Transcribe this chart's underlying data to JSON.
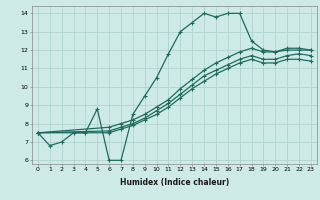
{
  "xlabel": "Humidex (Indice chaleur)",
  "xlim": [
    -0.5,
    23.5
  ],
  "ylim": [
    5.8,
    14.4
  ],
  "bg_color": "#ceeae7",
  "grid_color": "#afd4cf",
  "line_color": "#1e6b5e",
  "lines": [
    {
      "x": [
        0,
        1,
        2,
        3,
        4,
        5,
        6,
        7,
        8,
        9,
        10,
        11,
        12,
        13,
        14,
        15,
        16,
        17,
        18,
        19,
        20,
        21,
        22,
        23
      ],
      "y": [
        7.5,
        6.8,
        7.0,
        7.5,
        7.5,
        8.8,
        6.0,
        6.0,
        8.5,
        9.5,
        10.5,
        11.8,
        13.0,
        13.5,
        14.0,
        13.8,
        14.0,
        14.0,
        12.5,
        12.0,
        11.9,
        12.0,
        12.0,
        12.0
      ]
    },
    {
      "x": [
        0,
        6,
        7,
        8,
        9,
        10,
        11,
        12,
        13,
        14,
        15,
        16,
        17,
        18,
        19,
        20,
        21,
        22,
        23
      ],
      "y": [
        7.5,
        7.8,
        8.0,
        8.2,
        8.5,
        8.9,
        9.3,
        9.9,
        10.4,
        10.9,
        11.3,
        11.6,
        11.9,
        12.1,
        11.9,
        11.9,
        12.1,
        12.1,
        12.0
      ]
    },
    {
      "x": [
        0,
        6,
        7,
        8,
        9,
        10,
        11,
        12,
        13,
        14,
        15,
        16,
        17,
        18,
        19,
        20,
        21,
        22,
        23
      ],
      "y": [
        7.5,
        7.6,
        7.8,
        8.0,
        8.3,
        8.7,
        9.1,
        9.6,
        10.1,
        10.6,
        10.9,
        11.2,
        11.5,
        11.7,
        11.5,
        11.5,
        11.7,
        11.8,
        11.7
      ]
    },
    {
      "x": [
        0,
        6,
        7,
        8,
        9,
        10,
        11,
        12,
        13,
        14,
        15,
        16,
        17,
        18,
        19,
        20,
        21,
        22,
        23
      ],
      "y": [
        7.5,
        7.5,
        7.7,
        7.9,
        8.2,
        8.5,
        8.9,
        9.4,
        9.9,
        10.3,
        10.7,
        11.0,
        11.3,
        11.5,
        11.3,
        11.3,
        11.5,
        11.5,
        11.4
      ]
    }
  ],
  "xtick_positions": [
    0,
    1,
    2,
    3,
    4,
    5,
    6,
    7,
    8,
    9,
    10,
    11,
    12,
    13,
    14,
    15,
    16,
    17,
    18,
    19,
    20,
    21,
    22,
    23
  ],
  "xtick_labels": [
    "0",
    "1",
    "2",
    "3",
    "4",
    "5",
    "6",
    "7",
    "8",
    "9",
    "10",
    "11",
    "12",
    "13",
    "14",
    "15",
    "16",
    "17",
    "18",
    "19",
    "20",
    "21",
    "22",
    "23"
  ],
  "ytick_positions": [
    6,
    7,
    8,
    9,
    10,
    11,
    12,
    13,
    14
  ],
  "ytick_labels": [
    "6",
    "7",
    "8",
    "9",
    "10",
    "11",
    "12",
    "13",
    "14"
  ]
}
